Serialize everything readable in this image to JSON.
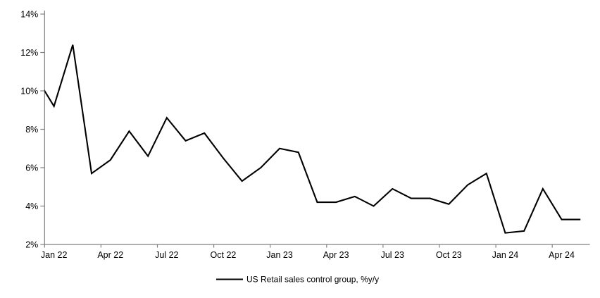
{
  "chart_data": {
    "type": "line",
    "title": "",
    "series_name": "US Retail sales control group, %y/y",
    "x": [
      "Dec 21",
      "Jan 22",
      "Feb 22",
      "Mar 22",
      "Apr 22",
      "May 22",
      "Jun 22",
      "Jul 22",
      "Aug 22",
      "Sep 22",
      "Oct 22",
      "Nov 22",
      "Dec 22",
      "Jan 23",
      "Feb 23",
      "Mar 23",
      "Apr 23",
      "May 23",
      "Jun 23",
      "Jul 23",
      "Aug 23",
      "Sep 23",
      "Oct 23",
      "Nov 23",
      "Dec 23",
      "Jan 24",
      "Feb 24",
      "Mar 24",
      "Apr 24",
      "May 24"
    ],
    "values": [
      10.8,
      9.2,
      12.4,
      5.7,
      6.4,
      7.9,
      6.6,
      8.6,
      7.4,
      7.8,
      6.5,
      5.3,
      6.0,
      7.0,
      6.8,
      4.2,
      4.2,
      4.5,
      4.0,
      4.9,
      4.4,
      4.4,
      4.1,
      5.1,
      5.7,
      2.6,
      2.7,
      4.9,
      3.3,
      3.3
    ],
    "first_point_note": "Dec 21 value lies left of the y-axis; its connecting segment enters the plot clipped at the axis at ~10%",
    "xlabel": "",
    "ylabel": "",
    "ylim": [
      2,
      14
    ],
    "y_tick_step": 2,
    "y_tick_labels": [
      "2%",
      "4%",
      "6%",
      "8%",
      "10%",
      "12%",
      "14%"
    ],
    "x_tick_labels": [
      "Jan 22",
      "Apr 22",
      "Jul 22",
      "Oct 22",
      "Jan 23",
      "Apr 23",
      "Jul 23",
      "Oct 23",
      "Jan 24",
      "Apr 24"
    ],
    "x_tick_every_n_months": 3,
    "grid": "off",
    "legend_position": "bottom-center",
    "line_color": "#000000",
    "axis_color": "#808080",
    "text_color": "#000000",
    "background_color": "#ffffff"
  }
}
